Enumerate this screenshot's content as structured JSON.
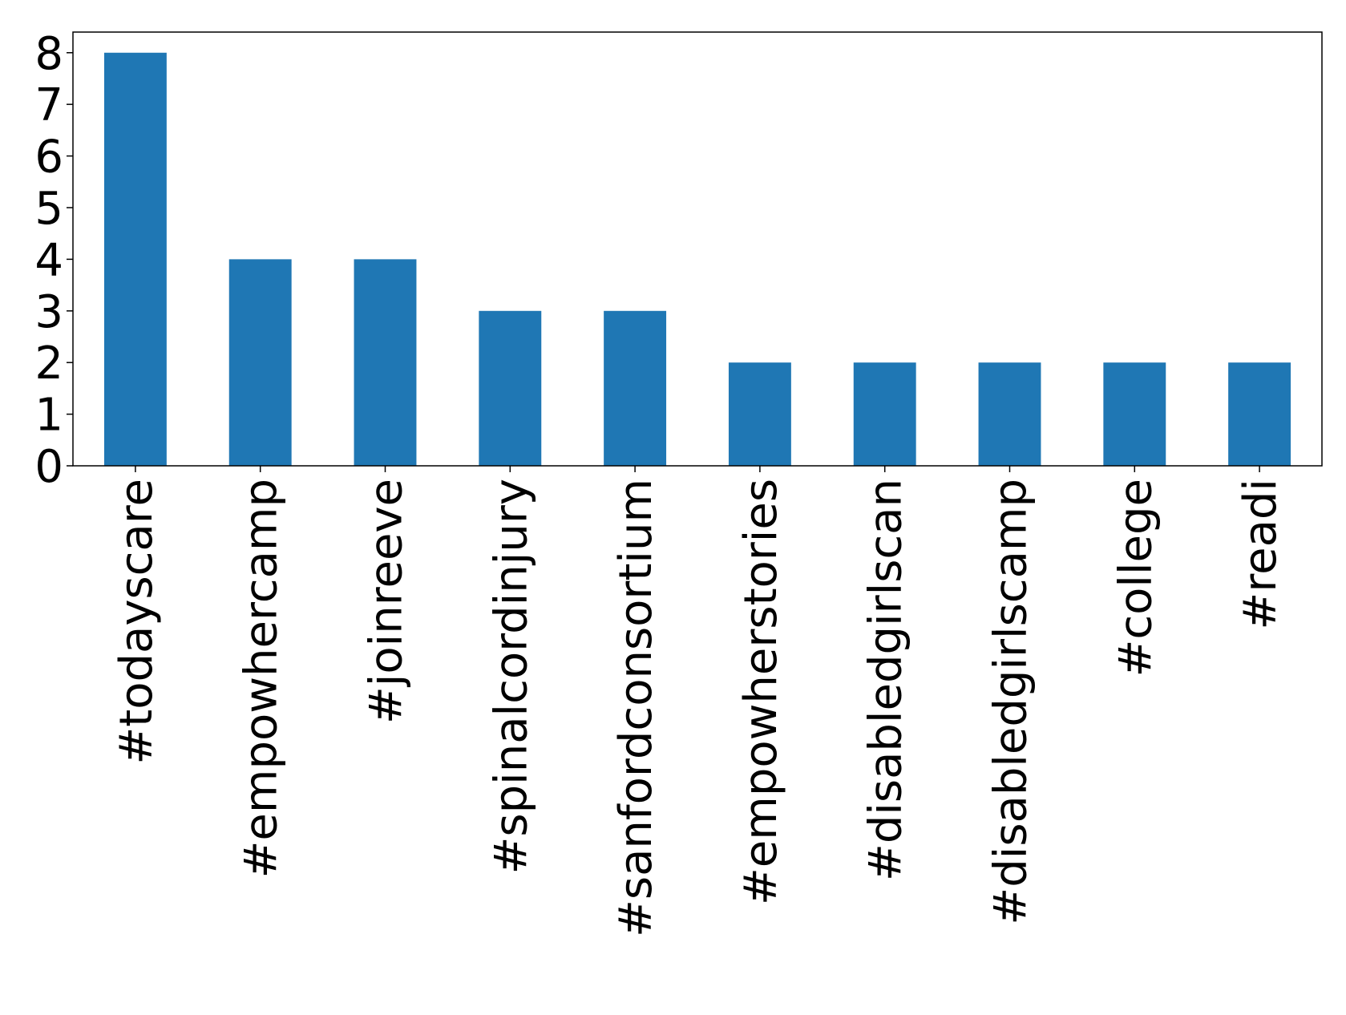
{
  "chart_data": {
    "type": "bar",
    "categories": [
      "#todayscare",
      "#empowhercamp",
      "#joinreeve",
      "#spinalcordinjury",
      "#sanfordconsortium",
      "#empowherstories",
      "#disabledgirlscan",
      "#disabledgirlscamp",
      "#college",
      "#readi"
    ],
    "values": [
      8,
      4,
      4,
      3,
      3,
      2,
      2,
      2,
      2,
      2
    ],
    "color": "#1f77b4",
    "ylim": [
      0,
      8.4
    ],
    "yticks": [
      0,
      1,
      2,
      3,
      4,
      5,
      6,
      7,
      8
    ],
    "grid": false
  }
}
